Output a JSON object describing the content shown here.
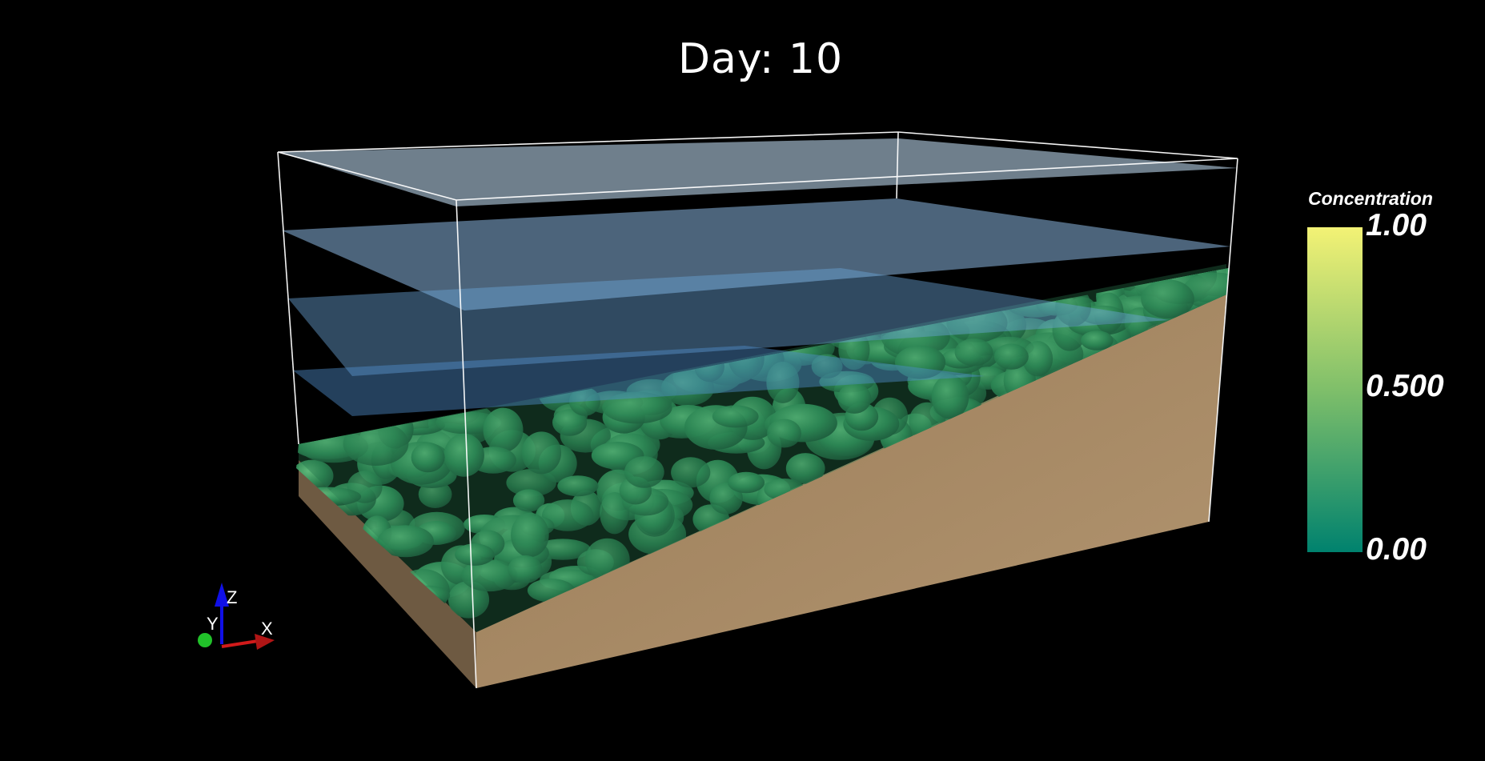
{
  "title": "Day: 10",
  "colorbar": {
    "title": "Concentration",
    "labels": {
      "max": "1.00",
      "mid": "0.500",
      "min": "0.00"
    },
    "colors": {
      "top": "#f3f275",
      "mid": "#7fbf6a",
      "bot": "#00826e"
    }
  },
  "orientation_axes": {
    "labels": {
      "x": "X",
      "y": "Y",
      "z": "Z"
    },
    "colors": {
      "x": "#d11a1a",
      "y": "#21c22a",
      "z": "#1010e6"
    }
  },
  "scene_colors": {
    "sediment": "#a68662",
    "sediment_side": "#6e5a42",
    "water": "#6fa6d8",
    "plume": "#2f8f5a",
    "frame": "#ffffff"
  }
}
